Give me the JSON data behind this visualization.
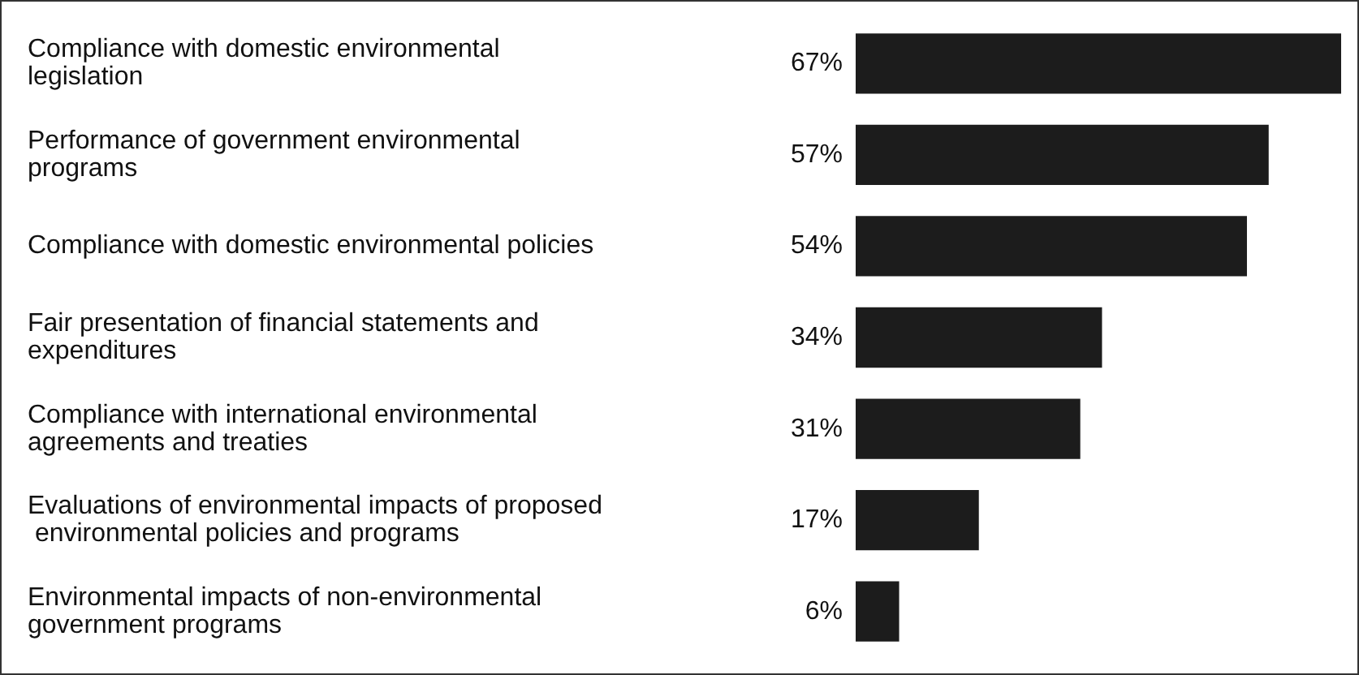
{
  "chart_data": {
    "type": "bar",
    "orientation": "horizontal",
    "categories": [
      "Compliance with domestic environmental legislation",
      "Performance of government environmental programs",
      "Compliance with domestic environmental policies",
      "Fair presentation of financial statements and expenditures",
      "Compliance with international environmental agreements and treaties",
      "Evaluations of environmental impacts of proposed environmental policies and programs",
      "Environmental impacts of non-environmental government programs"
    ],
    "values": [
      67,
      57,
      54,
      34,
      31,
      17,
      6
    ],
    "value_labels": [
      "67%",
      "57%",
      "54%",
      "34%",
      "31%",
      "17%",
      "6%"
    ],
    "color": "#1c1c1c"
  }
}
